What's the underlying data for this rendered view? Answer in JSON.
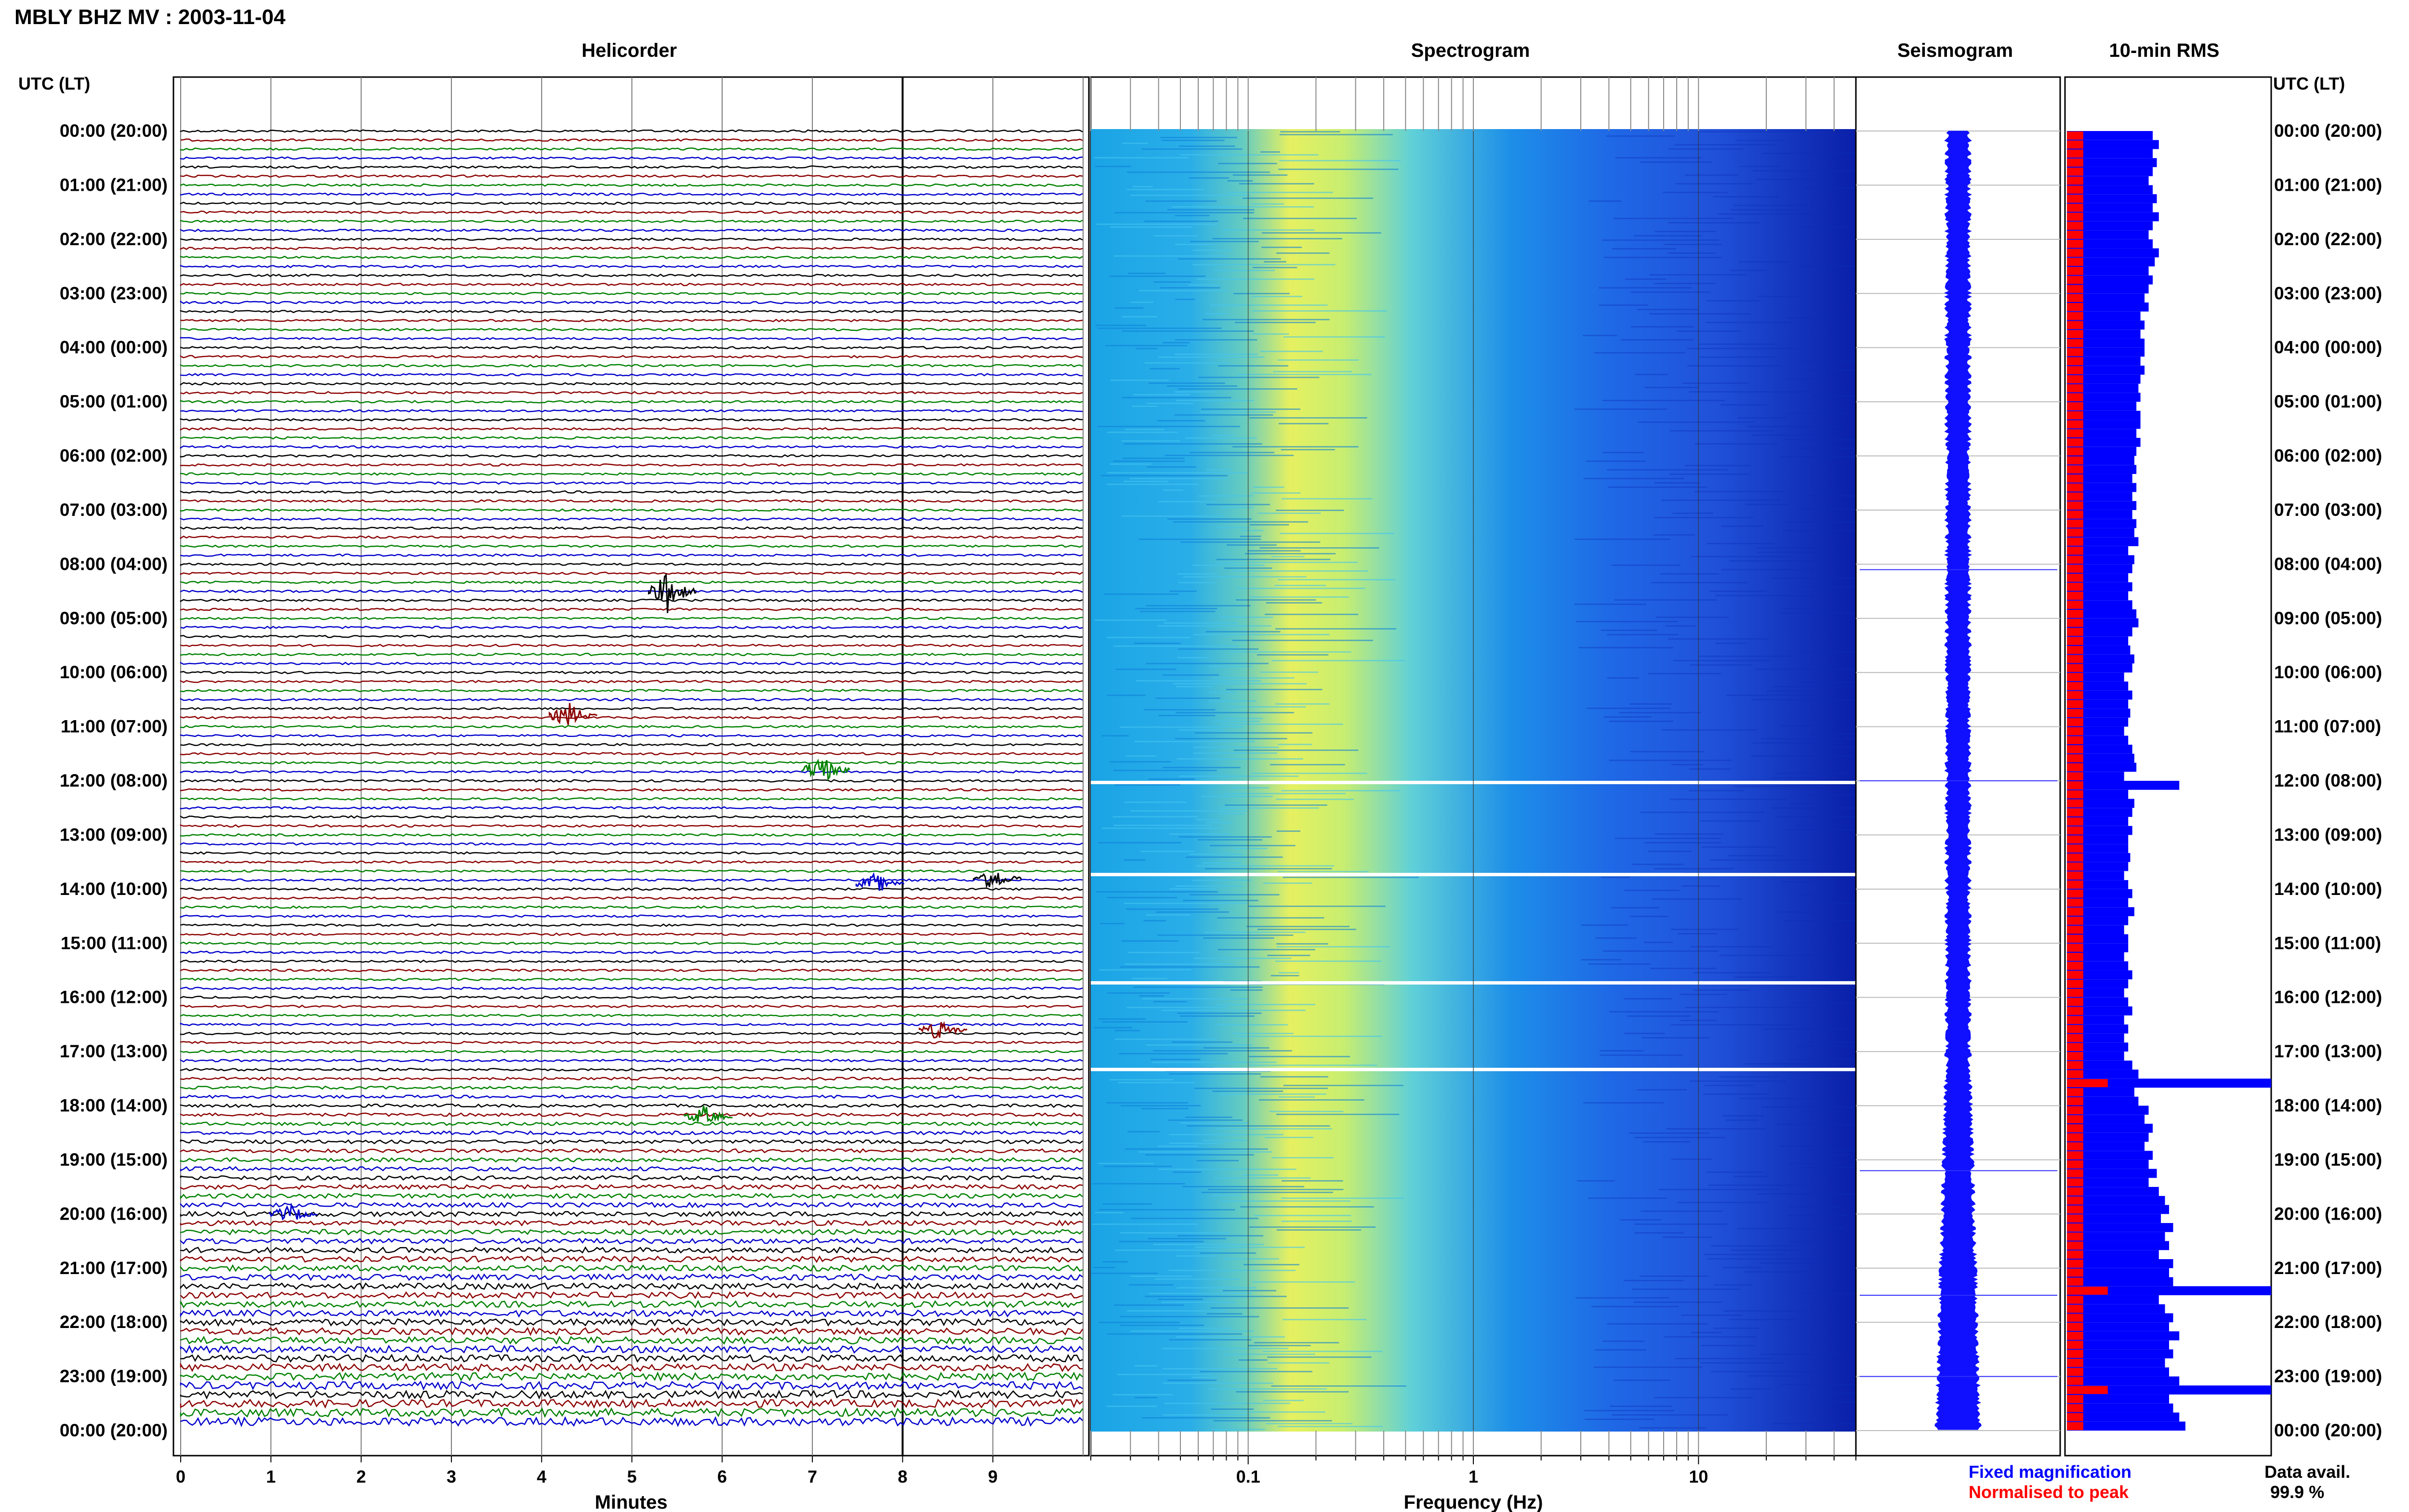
{
  "header": {
    "title": "MBLY BHZ MV : 2003-11-04"
  },
  "panels": {
    "helicorder": "Helicorder",
    "spectrogram": "Spectrogram",
    "seismogram": "Seismogram",
    "rms": "10-min RMS"
  },
  "axis_labels": {
    "utc_left": "UTC (LT)",
    "utc_right": "UTC (LT)",
    "minutes": "Minutes",
    "frequency": "Frequency (Hz)"
  },
  "legend": {
    "fixed": "Fixed magnification",
    "normalised": "Normalised to peak",
    "data_avail_label": "Data avail.",
    "data_avail_value": "99.9 %"
  },
  "colors": {
    "trace_cycle": [
      "#000000",
      "#8b0000",
      "#008000",
      "#0000cc"
    ],
    "seismo": "#1010ff",
    "rms_fixed": "#0000ff",
    "rms_norm": "#ff0000"
  },
  "chart_data": {
    "type": "heatmap",
    "time_labels": [
      "00:00 (20:00)",
      "01:00 (21:00)",
      "02:00 (22:00)",
      "03:00 (23:00)",
      "04:00 (00:00)",
      "05:00 (01:00)",
      "06:00 (02:00)",
      "07:00 (03:00)",
      "08:00 (04:00)",
      "09:00 (05:00)",
      "10:00 (06:00)",
      "11:00 (07:00)",
      "12:00 (08:00)",
      "13:00 (09:00)",
      "14:00 (10:00)",
      "15:00 (11:00)",
      "16:00 (12:00)",
      "17:00 (13:00)",
      "18:00 (14:00)",
      "19:00 (15:00)",
      "20:00 (16:00)",
      "21:00 (17:00)",
      "22:00 (18:00)",
      "23:00 (19:00)",
      "00:00 (20:00)"
    ],
    "minutes_ticks": [
      "0",
      "1",
      "2",
      "3",
      "4",
      "5",
      "6",
      "7",
      "8",
      "9"
    ],
    "frequency_ticks": [
      "0.1",
      "1",
      "10"
    ],
    "frequency_range_hz": [
      0.02,
      50
    ],
    "frequency_scale": "log",
    "helicorder_traces": 144,
    "helicorder_events": [
      {
        "hour": 8.5,
        "minute": 5.4,
        "amp": 4
      },
      {
        "hour": 10.8,
        "minute": 4.3,
        "amp": 2.5
      },
      {
        "hour": 11.8,
        "minute": 7.1,
        "amp": 3
      },
      {
        "hour": 13.9,
        "minute": 7.7,
        "amp": 2
      },
      {
        "hour": 13.8,
        "minute": 9.0,
        "amp": 2.5
      },
      {
        "hour": 16.6,
        "minute": 8.4,
        "amp": 2
      },
      {
        "hour": 18.2,
        "minute": 5.8,
        "amp": 2
      },
      {
        "hour": 20.0,
        "minute": 1.2,
        "amp": 2
      }
    ],
    "rms_fixed": [
      0.42,
      0.45,
      0.42,
      0.44,
      0.42,
      0.4,
      0.42,
      0.44,
      0.42,
      0.45,
      0.42,
      0.4,
      0.42,
      0.45,
      0.43,
      0.4,
      0.42,
      0.4,
      0.38,
      0.4,
      0.36,
      0.38,
      0.36,
      0.38,
      0.38,
      0.36,
      0.38,
      0.36,
      0.35,
      0.36,
      0.34,
      0.36,
      0.36,
      0.34,
      0.36,
      0.34,
      0.33,
      0.34,
      0.32,
      0.34,
      0.32,
      0.34,
      0.32,
      0.34,
      0.33,
      0.35,
      0.3,
      0.33,
      0.32,
      0.3,
      0.32,
      0.3,
      0.32,
      0.34,
      0.35,
      0.32,
      0.3,
      0.31,
      0.33,
      0.32,
      0.28,
      0.3,
      0.32,
      0.3,
      0.31,
      0.3,
      0.28,
      0.3,
      0.32,
      0.33,
      0.34,
      0.28,
      0.55,
      0.3,
      0.33,
      0.32,
      0.3,
      0.32,
      0.3,
      0.3,
      0.31,
      0.3,
      0.28,
      0.3,
      0.32,
      0.3,
      0.33,
      0.3,
      0.28,
      0.3,
      0.3,
      0.28,
      0.3,
      0.32,
      0.3,
      0.28,
      0.3,
      0.32,
      0.28,
      0.3,
      0.28,
      0.3,
      0.28,
      0.32,
      0.35,
      1.0,
      0.33,
      0.35,
      0.4,
      0.38,
      0.42,
      0.4,
      0.38,
      0.42,
      0.4,
      0.44,
      0.4,
      0.45,
      0.48,
      0.5,
      0.46,
      0.52,
      0.48,
      0.5,
      0.45,
      0.52,
      0.5,
      0.52,
      1.0,
      0.45,
      0.48,
      0.52,
      0.5,
      0.55,
      0.5,
      0.52,
      0.48,
      0.5,
      0.55,
      1.0,
      0.5,
      0.52,
      0.55,
      0.58
    ]
  }
}
